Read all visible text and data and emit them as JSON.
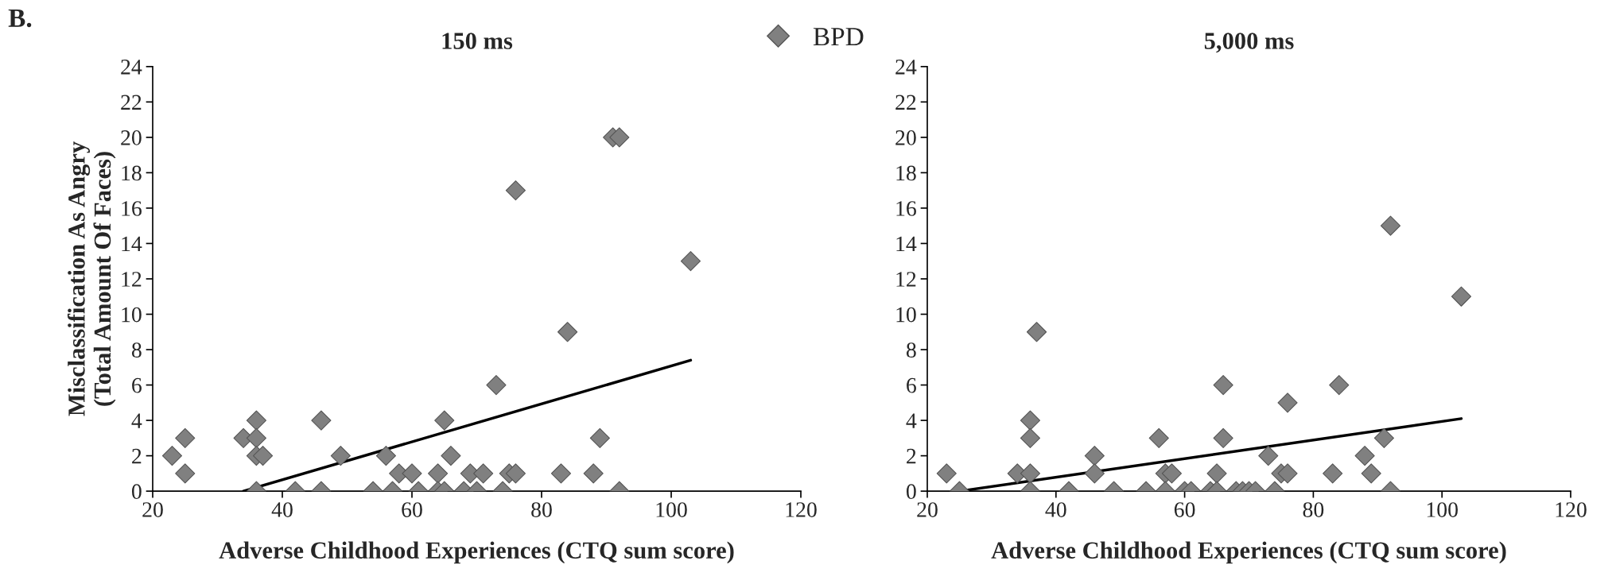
{
  "chart_data": [
    {
      "type": "scatter",
      "title": "150 ms",
      "xlabel": "Adverse Childhood Experiences (CTQ sum score)",
      "ylabel": "Misclassification As Angry\n(Total Amount Of Faces)",
      "annotations": [
        "B."
      ],
      "xlim": [
        20,
        120
      ],
      "xticks": [
        20,
        40,
        60,
        80,
        100,
        120
      ],
      "ylim": [
        0,
        24
      ],
      "yticks": [
        0,
        2,
        4,
        6,
        8,
        10,
        12,
        14,
        16,
        18,
        20,
        22,
        24
      ],
      "grid": false,
      "legend": "top right",
      "marker": "diamond",
      "series": [
        {
          "name": "BPD",
          "color": "#808080",
          "x": [
            23,
            25,
            25,
            34,
            36,
            36,
            36,
            37,
            36,
            42,
            46,
            46,
            49,
            54,
            56,
            57,
            58,
            60,
            61,
            64,
            64,
            65,
            65,
            66,
            68,
            69,
            70,
            71,
            73,
            74,
            75,
            76,
            76,
            83,
            84,
            88,
            89,
            91,
            92,
            92,
            103
          ],
          "values": [
            2,
            3,
            1,
            3,
            4,
            3,
            2,
            2,
            0,
            0,
            4,
            0,
            2,
            0,
            2,
            0,
            1,
            1,
            0,
            1,
            0,
            4,
            0,
            2,
            0,
            1,
            0,
            1,
            6,
            0,
            1,
            1,
            17,
            1,
            9,
            1,
            3,
            20,
            20,
            0,
            13
          ]
        },
        {
          "type": "line",
          "color": "#000000",
          "marker": "none",
          "x": [
            34,
            103
          ],
          "values": [
            0,
            7.4
          ]
        }
      ]
    },
    {
      "type": "scatter",
      "title": "5,000 ms",
      "xlabel": "Adverse Childhood Experiences (CTQ sum score)",
      "xlim": [
        20,
        120
      ],
      "xticks": [
        20,
        40,
        60,
        80,
        100,
        120
      ],
      "ylim": [
        0,
        24
      ],
      "yticks": [
        0,
        2,
        4,
        6,
        8,
        10,
        12,
        14,
        16,
        18,
        20,
        22,
        24
      ],
      "grid": false,
      "marker": "diamond",
      "series": [
        {
          "color": "#808080",
          "x": [
            23,
            25,
            34,
            36,
            36,
            36,
            36,
            37,
            42,
            46,
            46,
            49,
            54,
            56,
            57,
            57,
            58,
            60,
            61,
            64,
            65,
            65,
            66,
            66,
            68,
            69,
            70,
            71,
            73,
            74,
            75,
            76,
            76,
            83,
            84,
            88,
            89,
            91,
            92,
            92,
            103
          ],
          "values": [
            1,
            0,
            1,
            4,
            3,
            1,
            0,
            9,
            0,
            2,
            1,
            0,
            0,
            3,
            1,
            0,
            1,
            0,
            0,
            0,
            1,
            0,
            6,
            3,
            0,
            0,
            0,
            0,
            2,
            0,
            1,
            5,
            1,
            1,
            6,
            2,
            1,
            3,
            15,
            0,
            11
          ]
        },
        {
          "type": "line",
          "color": "#000000",
          "marker": "none",
          "x": [
            25,
            103
          ],
          "values": [
            0,
            4.1
          ]
        }
      ]
    }
  ]
}
